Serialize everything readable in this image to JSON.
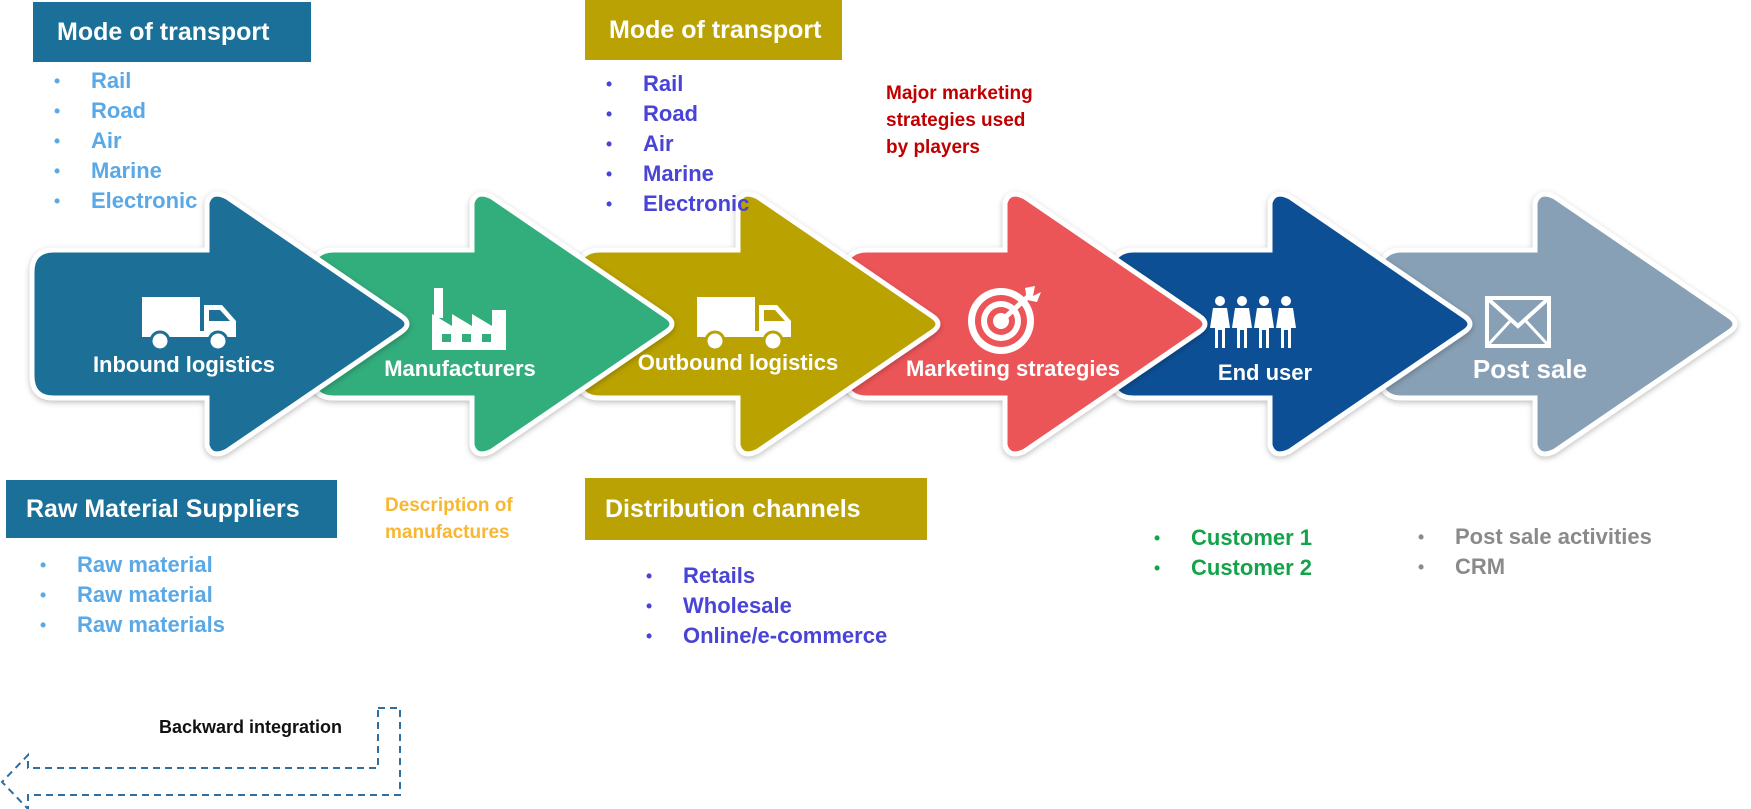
{
  "stages": [
    {
      "label": "Inbound logistics",
      "icon": "truck-icon",
      "color": "#1a7098"
    },
    {
      "label": "Manufacturers",
      "icon": "factory-icon",
      "color": "#33ad7b"
    },
    {
      "label": "Outbound logistics",
      "icon": "truck-icon",
      "color": "#baa205"
    },
    {
      "label": "Marketing strategies",
      "icon": "target-icon",
      "color": "#ec5558"
    },
    {
      "label": "End user",
      "icon": "people-icon",
      "color": "#0d4f95"
    },
    {
      "label": "Post sale",
      "icon": "envelope-icon",
      "color": "#88a0b5"
    }
  ],
  "inbound_transport": {
    "title": "Mode of transport",
    "items": [
      "Rail",
      "Road",
      "Air",
      "Marine",
      "Electronic"
    ]
  },
  "outbound_transport": {
    "title": "Mode of transport",
    "items": [
      "Rail",
      "Road",
      "Air",
      "Marine",
      "Electronic"
    ]
  },
  "marketing_note": {
    "lines": [
      "Major marketing",
      "strategies used",
      "by players"
    ]
  },
  "raw_material_suppliers": {
    "title": "Raw Material Suppliers",
    "items": [
      "Raw material",
      "Raw material",
      "Raw materials"
    ]
  },
  "manufactures_note": {
    "lines": [
      "Description of",
      "manufactures"
    ]
  },
  "distribution_channels": {
    "title": "Distribution channels",
    "items": [
      "Retails",
      "Wholesale",
      "Online/e-commerce"
    ]
  },
  "end_users": {
    "items": [
      "Customer 1",
      "Customer 2"
    ]
  },
  "post_sale": {
    "items": [
      "Post sale activities",
      "CRM"
    ]
  },
  "backward_integration": {
    "label": "Backward integration"
  },
  "colors": {
    "header_blue": "#1a7098",
    "header_gold": "#baa205",
    "light_blue_text": "#5aa9e6",
    "violet_text": "#4a44d6",
    "red_text": "#c00000",
    "orange_text": "#f7b733",
    "green_text": "#14a34a",
    "gray_text": "#8a8a8a",
    "dashed_arrow": "#2f6f9e"
  }
}
